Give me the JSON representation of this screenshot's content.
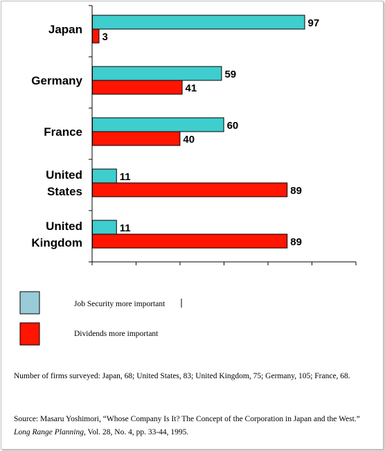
{
  "chart_data": {
    "type": "bar",
    "orientation": "horizontal",
    "categories": [
      [
        "Japan"
      ],
      [
        "Germany"
      ],
      [
        "France"
      ],
      [
        "United",
        "States"
      ],
      [
        "United",
        "Kingdom"
      ]
    ],
    "series": [
      {
        "name": "Job Security more important",
        "color": "#3fcdcd",
        "values": [
          97,
          59,
          60,
          11,
          11
        ]
      },
      {
        "name": "Dividends more important",
        "color": "#ff1500",
        "values": [
          3,
          41,
          40,
          89,
          89
        ]
      }
    ],
    "xlim": [
      0,
      100
    ],
    "grid": false,
    "legend_position": "bottom-left"
  },
  "legend": {
    "job_security": {
      "label": "Job Security more important",
      "swatch_color": "#99cbd8"
    },
    "dividends": {
      "label": "Dividends more important",
      "swatch_color": "#ff1500"
    }
  },
  "notes": {
    "surveyed": "Number of firms surveyed: Japan, 68; United States, 83; United Kingdom, 75; Germany, 105; France, 68.",
    "source_prefix": "Source: Masaru Yoshimori, “Whose Company Is It? The Concept of the Corporation in Japan and the West.” ",
    "source_journal": "Long Range Planning",
    "source_suffix": ", Vol. 28, No. 4, pp. 33-44, 1995."
  }
}
